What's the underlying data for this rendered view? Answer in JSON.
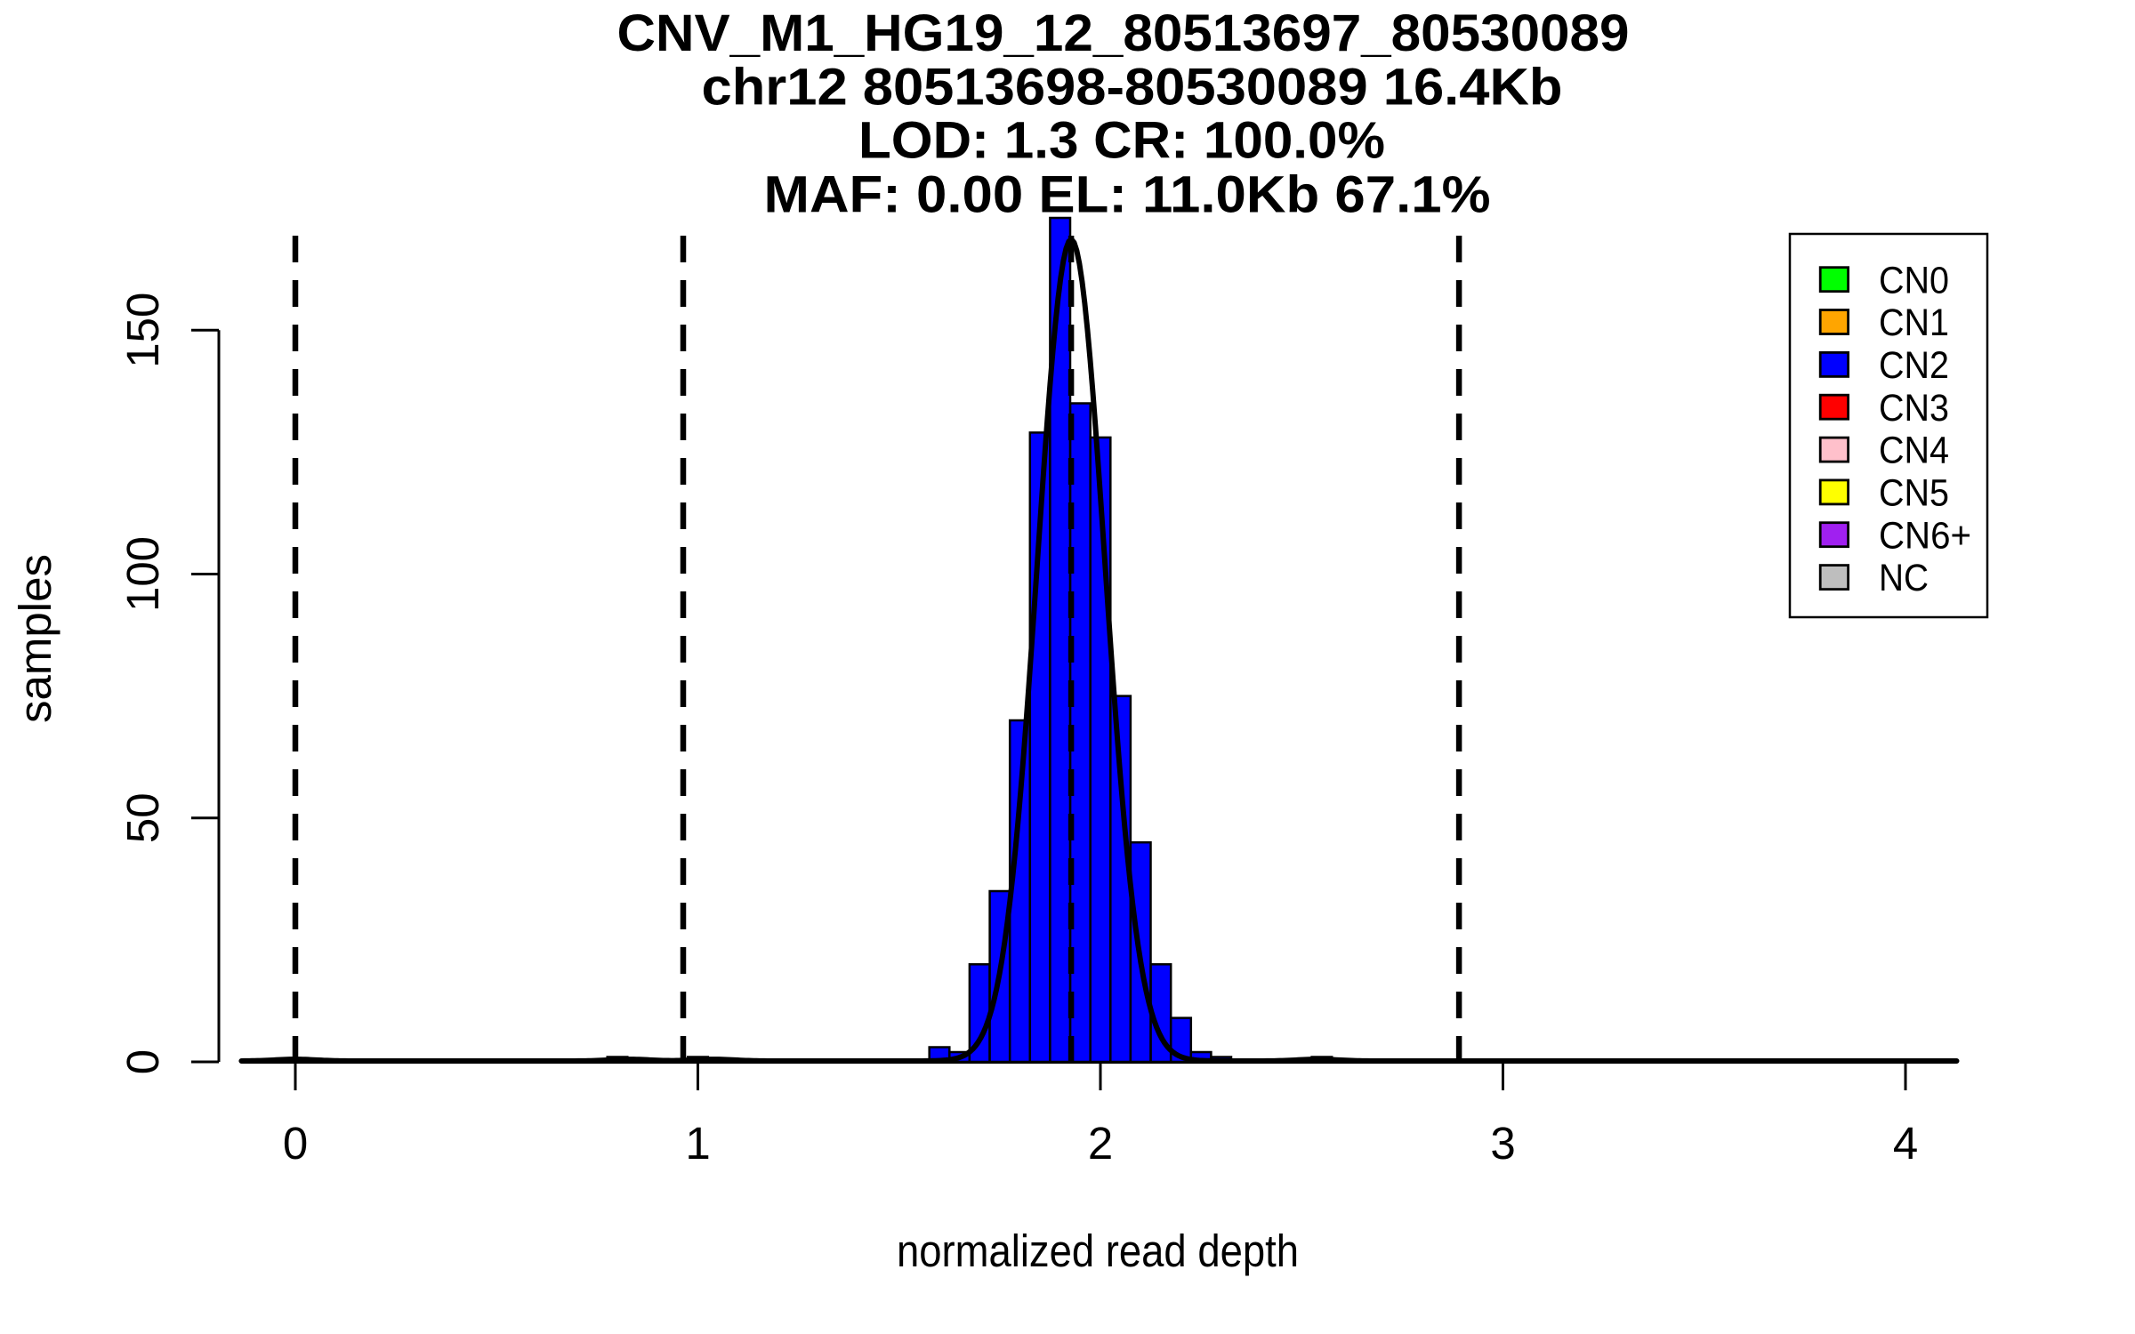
{
  "chart_data": {
    "type": "bar",
    "subtype": "histogram_with_density_curve",
    "title_lines": [
      "CNV_M1_HG19_12_80513697_80530089",
      "chr12 80513698-80530089 16.4Kb",
      "LOD: 1.3 CR: 100.0%",
      "MAF: 0.00 EL: 11.0Kb 67.1%"
    ],
    "xlabel": "normalized read depth",
    "ylabel": "samples",
    "xlim": [
      -0.134,
      4.127
    ],
    "ylim": [
      0,
      173
    ],
    "x_ticks": [
      0,
      1,
      2,
      3,
      4
    ],
    "y_ticks": [
      0,
      50,
      100,
      150
    ],
    "grid": false,
    "bin_width": 0.05,
    "bar_border_color": "#000000",
    "bars": [
      {
        "x0": 0.775,
        "x1": 0.825,
        "count": 1,
        "color": "#FFA500"
      },
      {
        "x0": 0.975,
        "x1": 1.025,
        "count": 1,
        "color": "#FFA500"
      },
      {
        "x0": 1.575,
        "x1": 1.625,
        "count": 3,
        "color": "#0000FF"
      },
      {
        "x0": 1.625,
        "x1": 1.675,
        "count": 2,
        "color": "#0000FF"
      },
      {
        "x0": 1.675,
        "x1": 1.725,
        "count": 20,
        "color": "#0000FF"
      },
      {
        "x0": 1.725,
        "x1": 1.775,
        "count": 35,
        "color": "#0000FF"
      },
      {
        "x0": 1.775,
        "x1": 1.825,
        "count": 70,
        "color": "#0000FF"
      },
      {
        "x0": 1.825,
        "x1": 1.875,
        "count": 129,
        "color": "#0000FF"
      },
      {
        "x0": 1.875,
        "x1": 1.925,
        "count": 173,
        "color": "#0000FF"
      },
      {
        "x0": 1.925,
        "x1": 1.975,
        "count": 135,
        "color": "#0000FF"
      },
      {
        "x0": 1.975,
        "x1": 2.025,
        "count": 128,
        "color": "#0000FF"
      },
      {
        "x0": 2.025,
        "x1": 2.075,
        "count": 75,
        "color": "#0000FF"
      },
      {
        "x0": 2.075,
        "x1": 2.125,
        "count": 45,
        "color": "#0000FF"
      },
      {
        "x0": 2.125,
        "x1": 2.175,
        "count": 20,
        "color": "#0000FF"
      },
      {
        "x0": 2.175,
        "x1": 2.225,
        "count": 9,
        "color": "#0000FF"
      },
      {
        "x0": 2.225,
        "x1": 2.275,
        "count": 2,
        "color": "#0000FF"
      },
      {
        "x0": 2.275,
        "x1": 2.325,
        "count": 1,
        "color": "#0000FF"
      },
      {
        "x0": 2.525,
        "x1": 2.575,
        "count": 1,
        "color": "#FF0000"
      }
    ],
    "dashed_lines_x": [
      0,
      0.9636,
      1.9272,
      2.8908
    ],
    "density_curve": {
      "color": "#000000",
      "mean": 1.9272,
      "sd": 0.084,
      "peak_samples": 168.4,
      "range": [
        -0.134,
        4.127
      ],
      "bumps": [
        {
          "center": 0.0,
          "height_samples": 0.35,
          "sd": 0.05
        },
        {
          "center": 0.83,
          "height_samples": 0.35,
          "sd": 0.05
        },
        {
          "center": 1.04,
          "height_samples": 0.35,
          "sd": 0.05
        },
        {
          "center": 2.54,
          "height_samples": 0.35,
          "sd": 0.05
        }
      ]
    },
    "legend": {
      "entries": [
        {
          "label": "CN0",
          "color": "#00FF00"
        },
        {
          "label": "CN1",
          "color": "#FFA500"
        },
        {
          "label": "CN2",
          "color": "#0000FF"
        },
        {
          "label": "CN3",
          "color": "#FF0000"
        },
        {
          "label": "CN4",
          "color": "#FFC0CB"
        },
        {
          "label": "CN5",
          "color": "#FFFF00"
        },
        {
          "label": "CN6+",
          "color": "#A020F0"
        },
        {
          "label": "NC",
          "color": "#BEBEBE"
        }
      ]
    }
  }
}
